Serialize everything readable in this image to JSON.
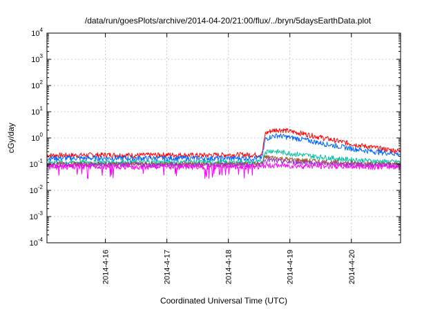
{
  "chart_data": {
    "type": "line",
    "title": "/data/run/goesPlots/archive/2014-04-20/21:00/flux/../bryn/5daysEarthData.plot",
    "xlabel": "Coordinated Universal Time (UTC)",
    "ylabel": "cGy/day",
    "yscale": "log",
    "ylim": [
      0.0001,
      10000
    ],
    "xlim": [
      15.05,
      20.8
    ],
    "grid": true,
    "legend": "none",
    "y_ticks": [
      {
        "value": 0.0001,
        "base": "10",
        "exp": "-4"
      },
      {
        "value": 0.001,
        "base": "10",
        "exp": "-3"
      },
      {
        "value": 0.01,
        "base": "10",
        "exp": "-2"
      },
      {
        "value": 0.1,
        "base": "10",
        "exp": "-1"
      },
      {
        "value": 1,
        "base": "10",
        "exp": "0"
      },
      {
        "value": 10,
        "base": "10",
        "exp": "1"
      },
      {
        "value": 100,
        "base": "10",
        "exp": "2"
      },
      {
        "value": 1000,
        "base": "10",
        "exp": "3"
      },
      {
        "value": 10000,
        "base": "10",
        "exp": "4"
      }
    ],
    "x_ticks": [
      {
        "value": 16,
        "label": "2014-4-16"
      },
      {
        "value": 17,
        "label": "2014-4-17"
      },
      {
        "value": 18,
        "label": "2014-4-18"
      },
      {
        "value": 19,
        "label": "2014-4-19"
      },
      {
        "value": 20,
        "label": "2014-4-20"
      }
    ],
    "series": [
      {
        "color": "#ff0000",
        "x": [
          15.05,
          15.5,
          16.0,
          16.5,
          17.0,
          17.5,
          18.0,
          18.5,
          18.55,
          18.6,
          18.7,
          18.8,
          18.9,
          19.0,
          19.2,
          19.4,
          19.6,
          19.8,
          20.0,
          20.2,
          20.4,
          20.6,
          20.8
        ],
        "y": [
          0.22,
          0.22,
          0.23,
          0.22,
          0.23,
          0.22,
          0.23,
          0.23,
          0.26,
          1.5,
          1.9,
          2.1,
          2.0,
          1.8,
          1.5,
          1.2,
          0.95,
          0.75,
          0.6,
          0.5,
          0.42,
          0.36,
          0.32
        ]
      },
      {
        "color": "#0066ff",
        "x": [
          15.05,
          15.5,
          16.0,
          16.5,
          17.0,
          17.5,
          18.0,
          18.5,
          18.55,
          18.6,
          18.7,
          18.8,
          18.9,
          19.0,
          19.2,
          19.4,
          19.6,
          19.8,
          20.0,
          20.2,
          20.4,
          20.6,
          20.8
        ],
        "y": [
          0.17,
          0.17,
          0.17,
          0.17,
          0.17,
          0.17,
          0.17,
          0.17,
          0.19,
          0.9,
          1.15,
          1.25,
          1.15,
          1.05,
          0.9,
          0.72,
          0.58,
          0.48,
          0.4,
          0.34,
          0.3,
          0.27,
          0.24
        ]
      },
      {
        "color": "#00c0a0",
        "x": [
          15.05,
          15.5,
          16.0,
          16.5,
          17.0,
          17.5,
          18.0,
          18.5,
          18.55,
          18.6,
          18.7,
          18.8,
          18.9,
          19.0,
          19.2,
          19.4,
          19.6,
          19.8,
          20.0,
          20.2,
          20.4,
          20.6,
          20.8
        ],
        "y": [
          0.12,
          0.12,
          0.12,
          0.12,
          0.12,
          0.12,
          0.12,
          0.12,
          0.13,
          0.3,
          0.33,
          0.3,
          0.28,
          0.26,
          0.23,
          0.2,
          0.18,
          0.16,
          0.15,
          0.14,
          0.13,
          0.125,
          0.12
        ]
      },
      {
        "color": "#a0522d",
        "x": [
          15.05,
          15.5,
          16.0,
          16.5,
          17.0,
          17.5,
          18.0,
          18.5,
          18.55,
          18.6,
          18.7,
          18.8,
          18.9,
          19.0,
          19.2,
          19.4,
          19.6,
          19.8,
          20.0,
          20.2,
          20.4,
          20.6,
          20.8
        ],
        "y": [
          0.1,
          0.1,
          0.1,
          0.1,
          0.1,
          0.1,
          0.1,
          0.1,
          0.11,
          0.19,
          0.18,
          0.17,
          0.16,
          0.15,
          0.14,
          0.13,
          0.12,
          0.115,
          0.11,
          0.105,
          0.1,
          0.1,
          0.1
        ]
      },
      {
        "color": "#9932cc",
        "x": [
          15.05,
          15.5,
          16.0,
          16.5,
          17.0,
          17.5,
          18.0,
          18.5,
          18.55,
          18.6,
          18.7,
          18.8,
          18.9,
          19.0,
          19.2,
          19.4,
          19.6,
          19.8,
          20.0,
          20.2,
          20.4,
          20.6,
          20.8
        ],
        "y": [
          0.095,
          0.095,
          0.095,
          0.095,
          0.095,
          0.095,
          0.095,
          0.095,
          0.1,
          0.15,
          0.14,
          0.13,
          0.125,
          0.12,
          0.115,
          0.11,
          0.105,
          0.1,
          0.1,
          0.098,
          0.096,
          0.095,
          0.094
        ]
      },
      {
        "color": "#ff00ff",
        "x": [
          15.05,
          15.5,
          16.0,
          16.5,
          17.0,
          17.5,
          18.0,
          18.5,
          18.55,
          18.6,
          18.7,
          18.8,
          18.9,
          19.0,
          19.2,
          19.4,
          19.6,
          19.8,
          20.0,
          20.2,
          20.4,
          20.6,
          20.8
        ],
        "y": [
          0.08,
          0.08,
          0.08,
          0.08,
          0.08,
          0.08,
          0.08,
          0.08,
          0.08,
          0.09,
          0.09,
          0.09,
          0.088,
          0.087,
          0.086,
          0.085,
          0.084,
          0.083,
          0.082,
          0.081,
          0.08,
          0.08,
          0.08
        ]
      }
    ]
  }
}
